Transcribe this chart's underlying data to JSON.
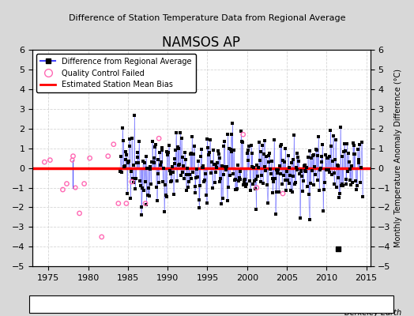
{
  "title": "NAMSOS AP",
  "subtitle": "Difference of Station Temperature Data from Regional Average",
  "ylabel_right": "Monthly Temperature Anomaly Difference (°C)",
  "ylim": [
    -5,
    6
  ],
  "xlim": [
    1973,
    2015.5
  ],
  "xticks": [
    1975,
    1980,
    1985,
    1990,
    1995,
    2000,
    2005,
    2010,
    2015
  ],
  "yticks": [
    -5,
    -4,
    -3,
    -2,
    -1,
    0,
    1,
    2,
    3,
    4,
    5,
    6
  ],
  "bias_line_y": 0.0,
  "line_color": "#4444ff",
  "dot_color": "#000000",
  "bias_color": "#ff0000",
  "qc_color": "#ff69b4",
  "background_color": "#d8d8d8",
  "plot_bg_color": "#ffffff",
  "berkeley_earth_text": "Berkeley Earth",
  "seed": 12345
}
